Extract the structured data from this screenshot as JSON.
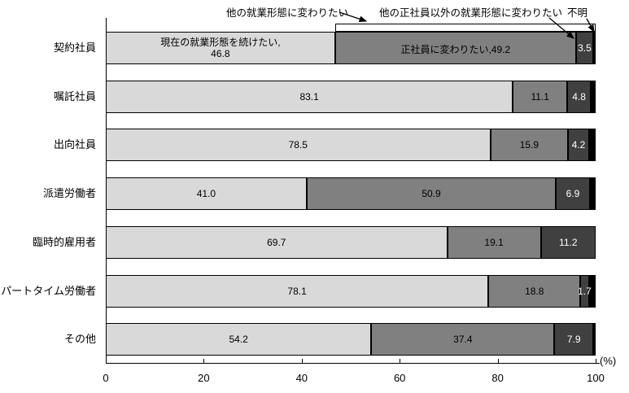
{
  "chart_data": {
    "type": "bar",
    "orientation": "horizontal",
    "stacked": true,
    "unit_label": "(%)",
    "xlim": [
      0,
      100
    ],
    "x_ticks": [
      0,
      20,
      40,
      60,
      80,
      100
    ],
    "grid": false,
    "legend_position": "none",
    "categories": [
      "契約社員",
      "嘱託社員",
      "出向社員",
      "派遣労働者",
      "臨時的雇用者",
      "パートタイム労働者",
      "その他"
    ],
    "series": [
      {
        "name": "現在の就業形態を続けたい",
        "color": "#d9d9d9",
        "label_color": "#000000",
        "values": [
          46.8,
          83.1,
          78.5,
          41.0,
          69.7,
          78.1,
          54.2
        ],
        "labels_shown": true
      },
      {
        "name": "正社員に変わりたい",
        "color": "#808080",
        "label_color": "#000000",
        "values": [
          49.2,
          11.1,
          15.9,
          50.9,
          19.1,
          18.8,
          37.4
        ],
        "labels_shown": true
      },
      {
        "name": "他の正社員以外の就業形態に変わりたい",
        "color": "#404040",
        "label_color": "#ffffff",
        "values": [
          3.5,
          4.8,
          4.2,
          6.9,
          11.2,
          1.7,
          7.9
        ],
        "labels_shown": true
      },
      {
        "name": "不明",
        "color": "#000000",
        "label_color": "#ffffff",
        "values": [
          0.5,
          1.0,
          1.4,
          1.2,
          0.0,
          1.4,
          0.5
        ],
        "labels_shown": false
      }
    ],
    "first_bar_inline_labels": {
      "series0_prefix": "現在の就業形態を続けたい,",
      "series0_value": "46.8",
      "series1_prefix": "正社員に変わりたい,",
      "series1_value": "49.2"
    },
    "annotations": [
      {
        "text": "他の就業形態に変わりたい",
        "target": "group-bracket-series-1-2"
      },
      {
        "text": "他の正社員以外の就業形態に変わりたい",
        "target": "series-2-segment-bar-0"
      },
      {
        "text": "不明",
        "target": "series-3-segment-bar-0"
      }
    ]
  }
}
